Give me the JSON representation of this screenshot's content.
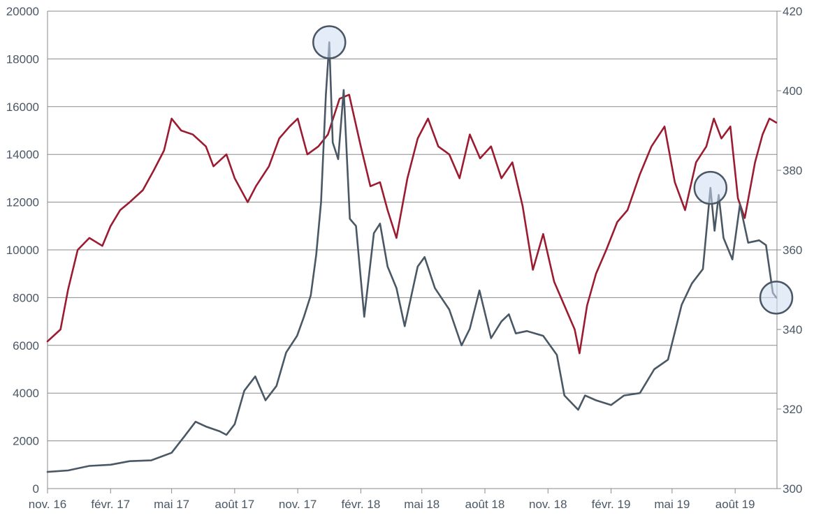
{
  "chart_data": {
    "type": "line",
    "title": "",
    "xlabel": "",
    "ylabel_left": "",
    "ylabel_right": "",
    "grid": true,
    "legend": "none",
    "x_tick_labels": [
      "nov. 16",
      "févr. 17",
      "mai 17",
      "août 17",
      "nov. 17",
      "févr. 18",
      "mai 18",
      "août 18",
      "nov. 18",
      "févr. 19",
      "mai 19",
      "août 19"
    ],
    "x_tick_dates": [
      "2016-11-01",
      "2017-02-01",
      "2017-05-01",
      "2017-08-01",
      "2017-11-01",
      "2018-02-01",
      "2018-05-01",
      "2018-08-01",
      "2018-11-01",
      "2019-02-01",
      "2019-05-01",
      "2019-08-01"
    ],
    "xlim": [
      "2016-11-01",
      "2019-10-01"
    ],
    "y_left": {
      "ticks": [
        0,
        2000,
        4000,
        6000,
        8000,
        10000,
        12000,
        14000,
        16000,
        18000,
        20000
      ],
      "ylim": [
        0,
        20000
      ]
    },
    "y_right": {
      "ticks": [
        300,
        320,
        340,
        360,
        380,
        400,
        420
      ],
      "ylim": [
        300,
        420
      ]
    },
    "series": [
      {
        "axis": "left",
        "color": "#4a5765",
        "points": [
          [
            "2016-11-01",
            700
          ],
          [
            "2016-12-01",
            760
          ],
          [
            "2017-01-01",
            950
          ],
          [
            "2017-02-01",
            1000
          ],
          [
            "2017-03-01",
            1150
          ],
          [
            "2017-04-01",
            1180
          ],
          [
            "2017-05-01",
            1500
          ],
          [
            "2017-05-20",
            2200
          ],
          [
            "2017-06-05",
            2800
          ],
          [
            "2017-06-20",
            2600
          ],
          [
            "2017-07-10",
            2400
          ],
          [
            "2017-07-20",
            2250
          ],
          [
            "2017-08-01",
            2700
          ],
          [
            "2017-08-15",
            4100
          ],
          [
            "2017-08-31",
            4700
          ],
          [
            "2017-09-15",
            3700
          ],
          [
            "2017-10-01",
            4300
          ],
          [
            "2017-10-15",
            5700
          ],
          [
            "2017-10-31",
            6400
          ],
          [
            "2017-11-10",
            7200
          ],
          [
            "2017-11-20",
            8100
          ],
          [
            "2017-11-28",
            9800
          ],
          [
            "2017-12-05",
            12000
          ],
          [
            "2017-12-12",
            16500
          ],
          [
            "2017-12-17",
            18700
          ],
          [
            "2017-12-22",
            14500
          ],
          [
            "2017-12-30",
            13800
          ],
          [
            "2018-01-07",
            16700
          ],
          [
            "2018-01-16",
            11300
          ],
          [
            "2018-01-25",
            11000
          ],
          [
            "2018-02-06",
            7200
          ],
          [
            "2018-02-20",
            10700
          ],
          [
            "2018-03-01",
            11100
          ],
          [
            "2018-03-12",
            9300
          ],
          [
            "2018-03-25",
            8400
          ],
          [
            "2018-04-06",
            6800
          ],
          [
            "2018-04-25",
            9300
          ],
          [
            "2018-05-05",
            9700
          ],
          [
            "2018-05-20",
            8400
          ],
          [
            "2018-06-10",
            7500
          ],
          [
            "2018-06-28",
            6000
          ],
          [
            "2018-07-10",
            6700
          ],
          [
            "2018-07-24",
            8300
          ],
          [
            "2018-08-10",
            6300
          ],
          [
            "2018-08-25",
            7000
          ],
          [
            "2018-09-05",
            7300
          ],
          [
            "2018-09-15",
            6500
          ],
          [
            "2018-10-01",
            6600
          ],
          [
            "2018-10-25",
            6400
          ],
          [
            "2018-11-14",
            5600
          ],
          [
            "2018-11-25",
            3900
          ],
          [
            "2018-12-15",
            3300
          ],
          [
            "2018-12-25",
            3900
          ],
          [
            "2019-01-10",
            3700
          ],
          [
            "2019-02-01",
            3500
          ],
          [
            "2019-02-20",
            3900
          ],
          [
            "2019-03-15",
            4000
          ],
          [
            "2019-04-05",
            5000
          ],
          [
            "2019-04-25",
            5400
          ],
          [
            "2019-05-15",
            7700
          ],
          [
            "2019-05-30",
            8600
          ],
          [
            "2019-06-15",
            9200
          ],
          [
            "2019-06-26",
            12600
          ],
          [
            "2019-07-02",
            10800
          ],
          [
            "2019-07-08",
            12300
          ],
          [
            "2019-07-15",
            10500
          ],
          [
            "2019-07-28",
            9600
          ],
          [
            "2019-08-08",
            11900
          ],
          [
            "2019-08-20",
            10300
          ],
          [
            "2019-09-05",
            10400
          ],
          [
            "2019-09-15",
            10200
          ],
          [
            "2019-09-25",
            8200
          ],
          [
            "2019-09-30",
            8000
          ]
        ]
      },
      {
        "axis": "right",
        "color": "#9b1b30",
        "points": [
          [
            "2016-11-01",
            337
          ],
          [
            "2016-11-20",
            340
          ],
          [
            "2016-12-01",
            350
          ],
          [
            "2016-12-15",
            360
          ],
          [
            "2017-01-01",
            363
          ],
          [
            "2017-01-20",
            361
          ],
          [
            "2017-02-01",
            366
          ],
          [
            "2017-02-15",
            370
          ],
          [
            "2017-03-01",
            372
          ],
          [
            "2017-03-20",
            375
          ],
          [
            "2017-04-05",
            380
          ],
          [
            "2017-04-20",
            385
          ],
          [
            "2017-05-01",
            393
          ],
          [
            "2017-05-15",
            390
          ],
          [
            "2017-06-01",
            389
          ],
          [
            "2017-06-20",
            386
          ],
          [
            "2017-07-01",
            381
          ],
          [
            "2017-07-20",
            384
          ],
          [
            "2017-08-01",
            378
          ],
          [
            "2017-08-20",
            372
          ],
          [
            "2017-09-01",
            376
          ],
          [
            "2017-09-20",
            381
          ],
          [
            "2017-10-05",
            388
          ],
          [
            "2017-10-20",
            391
          ],
          [
            "2017-11-01",
            393
          ],
          [
            "2017-11-15",
            384
          ],
          [
            "2017-12-01",
            386
          ],
          [
            "2017-12-15",
            389
          ],
          [
            "2018-01-01",
            398
          ],
          [
            "2018-01-15",
            399
          ],
          [
            "2018-02-01",
            386
          ],
          [
            "2018-02-15",
            376
          ],
          [
            "2018-03-01",
            377
          ],
          [
            "2018-03-12",
            370
          ],
          [
            "2018-03-25",
            363
          ],
          [
            "2018-04-10",
            378
          ],
          [
            "2018-04-25",
            388
          ],
          [
            "2018-05-10",
            393
          ],
          [
            "2018-05-25",
            386
          ],
          [
            "2018-06-10",
            384
          ],
          [
            "2018-06-25",
            378
          ],
          [
            "2018-07-10",
            389
          ],
          [
            "2018-07-25",
            383
          ],
          [
            "2018-08-10",
            386
          ],
          [
            "2018-08-25",
            378
          ],
          [
            "2018-09-10",
            382
          ],
          [
            "2018-09-25",
            371
          ],
          [
            "2018-10-10",
            355
          ],
          [
            "2018-10-25",
            364
          ],
          [
            "2018-11-10",
            352
          ],
          [
            "2018-11-25",
            346
          ],
          [
            "2018-12-10",
            340
          ],
          [
            "2018-12-17",
            334
          ],
          [
            "2018-12-28",
            346
          ],
          [
            "2019-01-10",
            354
          ],
          [
            "2019-01-25",
            360
          ],
          [
            "2019-02-10",
            367
          ],
          [
            "2019-02-25",
            370
          ],
          [
            "2019-03-15",
            379
          ],
          [
            "2019-04-01",
            386
          ],
          [
            "2019-04-20",
            391
          ],
          [
            "2019-05-05",
            377
          ],
          [
            "2019-05-20",
            370
          ],
          [
            "2019-06-05",
            382
          ],
          [
            "2019-06-20",
            386
          ],
          [
            "2019-07-01",
            393
          ],
          [
            "2019-07-12",
            388
          ],
          [
            "2019-07-25",
            391
          ],
          [
            "2019-08-05",
            373
          ],
          [
            "2019-08-15",
            368
          ],
          [
            "2019-08-30",
            382
          ],
          [
            "2019-09-10",
            389
          ],
          [
            "2019-09-20",
            393
          ],
          [
            "2019-09-30",
            392
          ]
        ]
      }
    ],
    "highlights": [
      {
        "date": "2017-12-17",
        "value": 18700,
        "axis": "left"
      },
      {
        "date": "2019-06-26",
        "value": 12600,
        "axis": "left"
      },
      {
        "date": "2019-09-30",
        "value": 8000,
        "axis": "left"
      }
    ]
  }
}
